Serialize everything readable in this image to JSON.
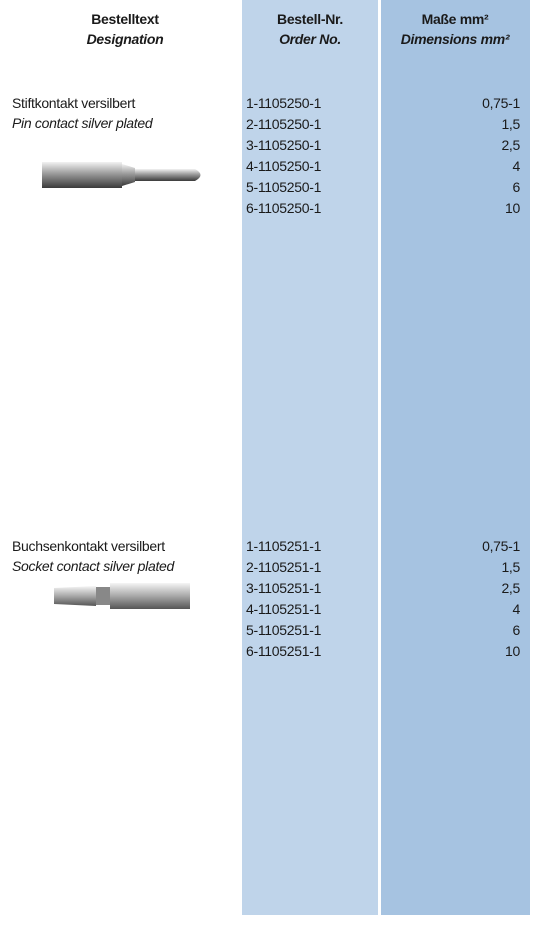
{
  "header": {
    "columns": [
      {
        "title": "Bestelltext",
        "subtitle": "Designation"
      },
      {
        "title": "Bestell-Nr.",
        "subtitle": "Order No."
      },
      {
        "title": "Maße mm²",
        "subtitle": "Dimensions mm²"
      }
    ]
  },
  "sections": [
    {
      "title": "Stiftkontakt versilbert",
      "subtitle": "Pin contact silver plated",
      "rows": [
        [
          "1-1105250-1",
          "0,75-1"
        ],
        [
          "2-1105250-1",
          "1,5"
        ],
        [
          "3-1105250-1",
          "2,5"
        ],
        [
          "4-1105250-1",
          "4"
        ],
        [
          "5-1105250-1",
          "6"
        ],
        [
          "6-1105250-1",
          "10"
        ]
      ]
    },
    {
      "title": "Buchsenkontakt versilbert",
      "subtitle": "Socket contact silver plated",
      "rows": [
        [
          "1-1105251-1",
          "0,75-1"
        ],
        [
          "2-1105251-1",
          "1,5"
        ],
        [
          "3-1105251-1",
          "2,5"
        ],
        [
          "4-1105251-1",
          "4"
        ],
        [
          "5-1105251-1",
          "6"
        ],
        [
          "6-1105251-1",
          "10"
        ]
      ]
    }
  ]
}
